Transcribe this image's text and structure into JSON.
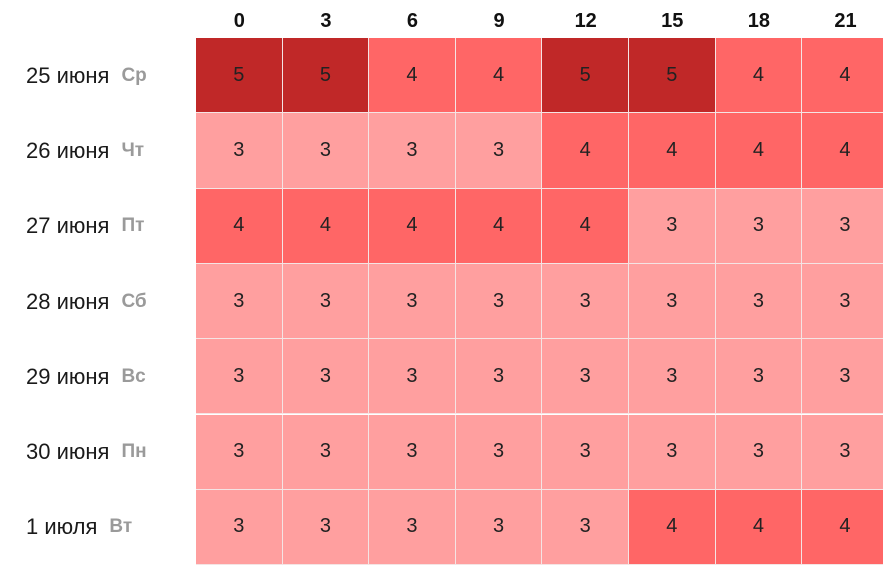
{
  "chart_data": {
    "type": "heatmap",
    "columns": [
      "0",
      "3",
      "6",
      "9",
      "12",
      "15",
      "18",
      "21"
    ],
    "rows": [
      {
        "date": "25 июня",
        "weekday": "Ср"
      },
      {
        "date": "26 июня",
        "weekday": "Чт"
      },
      {
        "date": "27 июня",
        "weekday": "Пт"
      },
      {
        "date": "28 июня",
        "weekday": "Сб"
      },
      {
        "date": "29 июня",
        "weekday": "Вс"
      },
      {
        "date": "30 июня",
        "weekday": "Пн"
      },
      {
        "date": "1 июля",
        "weekday": "Вт"
      }
    ],
    "values": [
      [
        5,
        5,
        4,
        4,
        5,
        5,
        4,
        4
      ],
      [
        3,
        3,
        3,
        3,
        4,
        4,
        4,
        4
      ],
      [
        4,
        4,
        4,
        4,
        4,
        3,
        3,
        3
      ],
      [
        3,
        3,
        3,
        3,
        3,
        3,
        3,
        3
      ],
      [
        3,
        3,
        3,
        3,
        3,
        3,
        3,
        3
      ],
      [
        3,
        3,
        3,
        3,
        3,
        3,
        3,
        3
      ],
      [
        3,
        3,
        3,
        3,
        3,
        4,
        4,
        4
      ]
    ],
    "color_scale": {
      "3": "#ff9f9f",
      "4": "#ff6666",
      "5": "#c02828"
    }
  }
}
